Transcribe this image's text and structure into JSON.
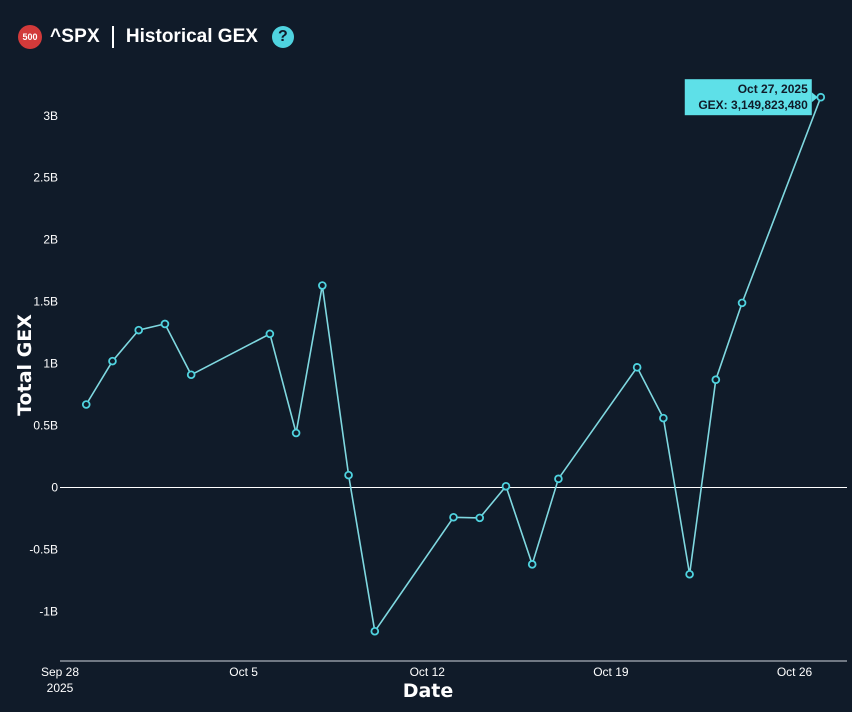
{
  "header": {
    "badge": "500",
    "ticker": "^SPX",
    "title": "Historical GEX",
    "help_label": "?"
  },
  "colors": {
    "background": "#101b29",
    "line": "#7fd8e0",
    "marker": "#4fd3df",
    "tooltip_bg": "#5ee0e8",
    "zero_line": "#ffffff",
    "badge": "#d23a3a"
  },
  "chart_data": {
    "type": "line",
    "xlabel": "Date",
    "ylabel": "Total GEX",
    "ylim": [
      -1.4,
      3.45
    ],
    "xlim": [
      "2025-09-28",
      "2025-10-28"
    ],
    "x_ticks": [
      {
        "date": "2025-09-28",
        "label": "Sep 28",
        "sublabel": "2025"
      },
      {
        "date": "2025-10-05",
        "label": "Oct 5",
        "sublabel": ""
      },
      {
        "date": "2025-10-12",
        "label": "Oct 12",
        "sublabel": ""
      },
      {
        "date": "2025-10-19",
        "label": "Oct 19",
        "sublabel": ""
      },
      {
        "date": "2025-10-26",
        "label": "Oct 26",
        "sublabel": ""
      }
    ],
    "y_ticks": [
      {
        "value": 3,
        "label": "3B"
      },
      {
        "value": 2.5,
        "label": "2.5B"
      },
      {
        "value": 2,
        "label": "2B"
      },
      {
        "value": 1.5,
        "label": "1.5B"
      },
      {
        "value": 1,
        "label": "1B"
      },
      {
        "value": 0.5,
        "label": "0.5B"
      },
      {
        "value": 0,
        "label": "0"
      },
      {
        "value": -0.5,
        "label": "-0.5B"
      },
      {
        "value": -1,
        "label": "-1B"
      }
    ],
    "series": [
      {
        "points": [
          {
            "x": "2025-09-29",
            "y": 0.67
          },
          {
            "x": "2025-09-30",
            "y": 1.02
          },
          {
            "x": "2025-10-01",
            "y": 1.27
          },
          {
            "x": "2025-10-02",
            "y": 1.32
          },
          {
            "x": "2025-10-03",
            "y": 0.91
          },
          {
            "x": "2025-10-06",
            "y": 1.24
          },
          {
            "x": "2025-10-07",
            "y": 0.44
          },
          {
            "x": "2025-10-08",
            "y": 1.63
          },
          {
            "x": "2025-10-09",
            "y": 0.1
          },
          {
            "x": "2025-10-10",
            "y": -1.16
          },
          {
            "x": "2025-10-13",
            "y": -0.24
          },
          {
            "x": "2025-10-14",
            "y": -0.245
          },
          {
            "x": "2025-10-15",
            "y": 0.01
          },
          {
            "x": "2025-10-16",
            "y": -0.62
          },
          {
            "x": "2025-10-17",
            "y": 0.07
          },
          {
            "x": "2025-10-20",
            "y": 0.97
          },
          {
            "x": "2025-10-21",
            "y": 0.56
          },
          {
            "x": "2025-10-22",
            "y": -0.7
          },
          {
            "x": "2025-10-23",
            "y": 0.87
          },
          {
            "x": "2025-10-24",
            "y": 1.49
          },
          {
            "x": "2025-10-27",
            "y": 3.14982348
          }
        ]
      }
    ],
    "tooltip": {
      "date": "Oct 27, 2025",
      "text": "GEX: 3,149,823,480",
      "x": "2025-10-27",
      "y": 3.14982348
    }
  }
}
